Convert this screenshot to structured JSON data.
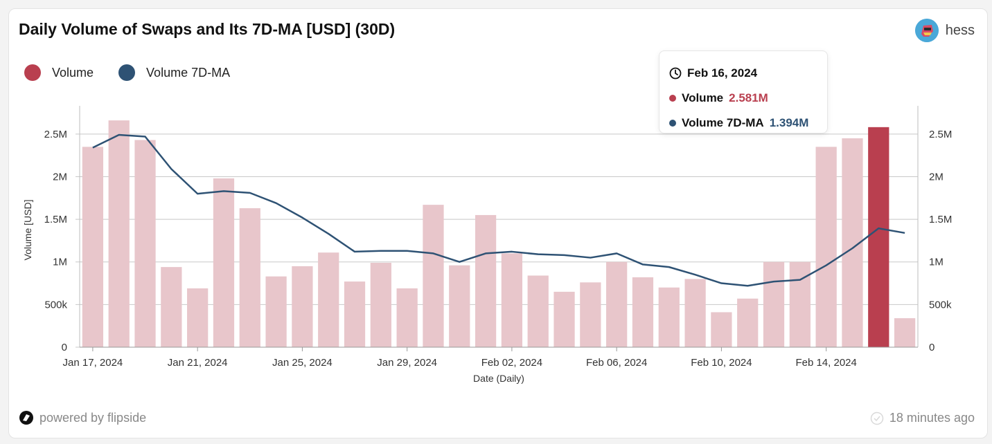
{
  "header": {
    "title": "Daily Volume of Swaps and Its 7D-MA [USD] (30D)",
    "username": "hess"
  },
  "legend": [
    {
      "label": "Volume",
      "color": "#b93f4f"
    },
    {
      "label": "Volume 7D-MA",
      "color": "#2e5274"
    }
  ],
  "tooltip": {
    "date": "Feb 16, 2024",
    "volume_label": "Volume",
    "volume_value": "2.581M",
    "ma_label": "Volume 7D-MA",
    "ma_value": "1.394M"
  },
  "footer": {
    "powered_by": "powered by flipside",
    "updated": "18 minutes ago"
  },
  "chart_data": {
    "type": "bar",
    "xlabel": "Date (Daily)",
    "ylabel": "Volume [USD]",
    "ylim": [
      0,
      2750000
    ],
    "y2lim": [
      0,
      2750000
    ],
    "yticks": [
      {
        "value": 0,
        "label": "0"
      },
      {
        "value": 500000,
        "label": "500k"
      },
      {
        "value": 1000000,
        "label": "1M"
      },
      {
        "value": 1500000,
        "label": "1.5M"
      },
      {
        "value": 2000000,
        "label": "2M"
      },
      {
        "value": 2500000,
        "label": "2.5M"
      }
    ],
    "y2ticks": [
      {
        "value": 0,
        "label": "0"
      },
      {
        "value": 500000,
        "label": "500k"
      },
      {
        "value": 1000000,
        "label": "1M"
      },
      {
        "value": 1500000,
        "label": "1.5M"
      },
      {
        "value": 2000000,
        "label": "2M"
      },
      {
        "value": 2500000,
        "label": "2.5M"
      }
    ],
    "categories": [
      "2024-01-17",
      "2024-01-18",
      "2024-01-19",
      "2024-01-20",
      "2024-01-21",
      "2024-01-22",
      "2024-01-23",
      "2024-01-24",
      "2024-01-25",
      "2024-01-26",
      "2024-01-27",
      "2024-01-28",
      "2024-01-29",
      "2024-01-30",
      "2024-01-31",
      "2024-02-01",
      "2024-02-02",
      "2024-02-03",
      "2024-02-04",
      "2024-02-05",
      "2024-02-06",
      "2024-02-07",
      "2024-02-08",
      "2024-02-09",
      "2024-02-10",
      "2024-02-11",
      "2024-02-12",
      "2024-02-13",
      "2024-02-14",
      "2024-02-15",
      "2024-02-16",
      "2024-02-17"
    ],
    "xticks": [
      {
        "index": 0,
        "label": "Jan 17, 2024"
      },
      {
        "index": 4,
        "label": "Jan 21, 2024"
      },
      {
        "index": 8,
        "label": "Jan 25, 2024"
      },
      {
        "index": 12,
        "label": "Jan 29, 2024"
      },
      {
        "index": 16,
        "label": "Feb 02, 2024"
      },
      {
        "index": 20,
        "label": "Feb 06, 2024"
      },
      {
        "index": 24,
        "label": "Feb 10, 2024"
      },
      {
        "index": 28,
        "label": "Feb 14, 2024"
      }
    ],
    "highlight_index": 30,
    "series": [
      {
        "name": "Volume",
        "type": "bar",
        "axis": "left",
        "values": [
          2350000,
          2660000,
          2430000,
          940000,
          690000,
          1980000,
          1630000,
          830000,
          950000,
          1110000,
          770000,
          990000,
          690000,
          1670000,
          960000,
          1550000,
          1100000,
          840000,
          650000,
          760000,
          1000000,
          820000,
          700000,
          800000,
          410000,
          570000,
          1000000,
          1000000,
          2350000,
          2450000,
          2581000,
          340000
        ]
      },
      {
        "name": "Volume 7D-MA",
        "type": "line",
        "axis": "right",
        "values": [
          2340000,
          2490000,
          2470000,
          2090000,
          1800000,
          1830000,
          1810000,
          1690000,
          1520000,
          1330000,
          1120000,
          1130000,
          1130000,
          1100000,
          1000000,
          1100000,
          1120000,
          1090000,
          1080000,
          1050000,
          1100000,
          970000,
          940000,
          850000,
          750000,
          720000,
          770000,
          790000,
          960000,
          1160000,
          1394000,
          1340000
        ]
      }
    ],
    "colors": {
      "bar": "#e8c6cb",
      "bar_highlight": "#b93f4f",
      "line": "#2e5274",
      "grid": "#c8c8c8"
    }
  }
}
